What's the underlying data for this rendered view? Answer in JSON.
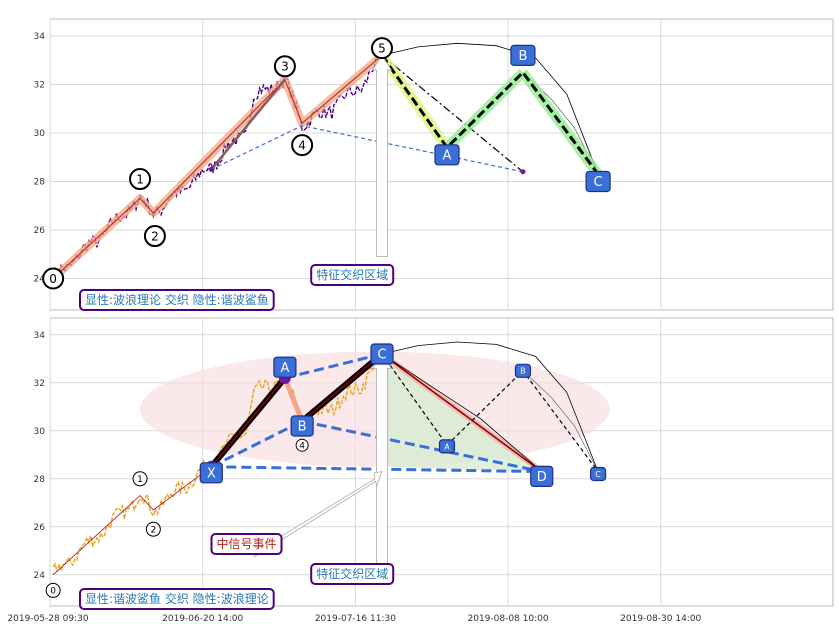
{
  "chart_data": [
    {
      "id": "top",
      "type": "line",
      "title": "",
      "xlabel": "",
      "ylabel": "",
      "ylim": [
        22.7,
        34.7
      ],
      "yticks": [
        24,
        26,
        28,
        30,
        32,
        34
      ],
      "grid": true,
      "price_color": "#4b0082",
      "wave_points": [
        {
          "label": "0",
          "x": 0.4,
          "y": 24.0
        },
        {
          "label": "1",
          "x": 11.5,
          "y": 27.3
        },
        {
          "label": "2",
          "x": 13.2,
          "y": 26.7
        },
        {
          "label": "3",
          "x": 30.0,
          "y": 32.2
        },
        {
          "label": "4",
          "x": 32.2,
          "y": 30.4
        },
        {
          "label": "5",
          "x": 42.4,
          "y": 33.2
        }
      ],
      "abc_points": [
        {
          "label": "A",
          "x": 50.7,
          "y": 29.4
        },
        {
          "label": "B",
          "x": 60.4,
          "y": 32.5
        },
        {
          "label": "C",
          "x": 70.0,
          "y": 28.3
        }
      ],
      "text_boxes": {
        "zone": "特征交织区域",
        "legend": "显性:波浪理论 交织 隐性:谐波鲨鱼"
      }
    },
    {
      "id": "bottom",
      "type": "line",
      "title": "",
      "xlabel": "",
      "ylabel": "",
      "ylim": [
        22.7,
        34.7
      ],
      "yticks": [
        24,
        26,
        28,
        30,
        32,
        34
      ],
      "grid": true,
      "price_color": "#e8a317",
      "wave_points": [
        {
          "label": "0",
          "x": 0.4,
          "y": 24.0
        },
        {
          "label": "1",
          "x": 11.5,
          "y": 27.3
        },
        {
          "label": "2",
          "x": 13.2,
          "y": 26.7
        },
        {
          "label": "4",
          "x": 32.2,
          "y": 30.4
        }
      ],
      "harmonic_points": [
        {
          "label": "X",
          "x": 20.6,
          "y": 28.5
        },
        {
          "label": "A",
          "x": 30.0,
          "y": 32.2
        },
        {
          "label": "B",
          "x": 32.2,
          "y": 30.4
        },
        {
          "label": "C",
          "x": 42.4,
          "y": 33.2
        },
        {
          "label": "D",
          "x": 62.8,
          "y": 28.3
        }
      ],
      "abc_points": [
        {
          "label": "A",
          "x": 50.7,
          "y": 29.4
        },
        {
          "label": "B",
          "x": 60.4,
          "y": 32.5
        },
        {
          "label": "C",
          "x": 70.0,
          "y": 28.3
        }
      ],
      "text_boxes": {
        "signal": "中信号事件",
        "zone": "特征交织区域",
        "legend": "显性:谐波鲨鱼 交织 隐性:波浪理论"
      }
    }
  ],
  "x_axis": {
    "xlim": [
      0,
      100
    ],
    "ticks": [
      {
        "x": 0,
        "label": "2019-05-28 09:30"
      },
      {
        "x": 19.5,
        "label": "2019-06-20 14:00"
      },
      {
        "x": 39.0,
        "label": "2019-07-16 11:30"
      },
      {
        "x": 58.5,
        "label": "2019-08-08 10:00"
      },
      {
        "x": 78.0,
        "label": "2019-08-30 14:00"
      }
    ]
  },
  "colors": {
    "box_blue": "#3a6fd8",
    "box_border": "#4b0082",
    "wave_fill": "#f4a582",
    "green_fill": "#90ee90",
    "yellow_fill": "#dcf57a",
    "ellipse_fill": "#f9dcdf",
    "dashed_blue": "#3a6fd8"
  }
}
